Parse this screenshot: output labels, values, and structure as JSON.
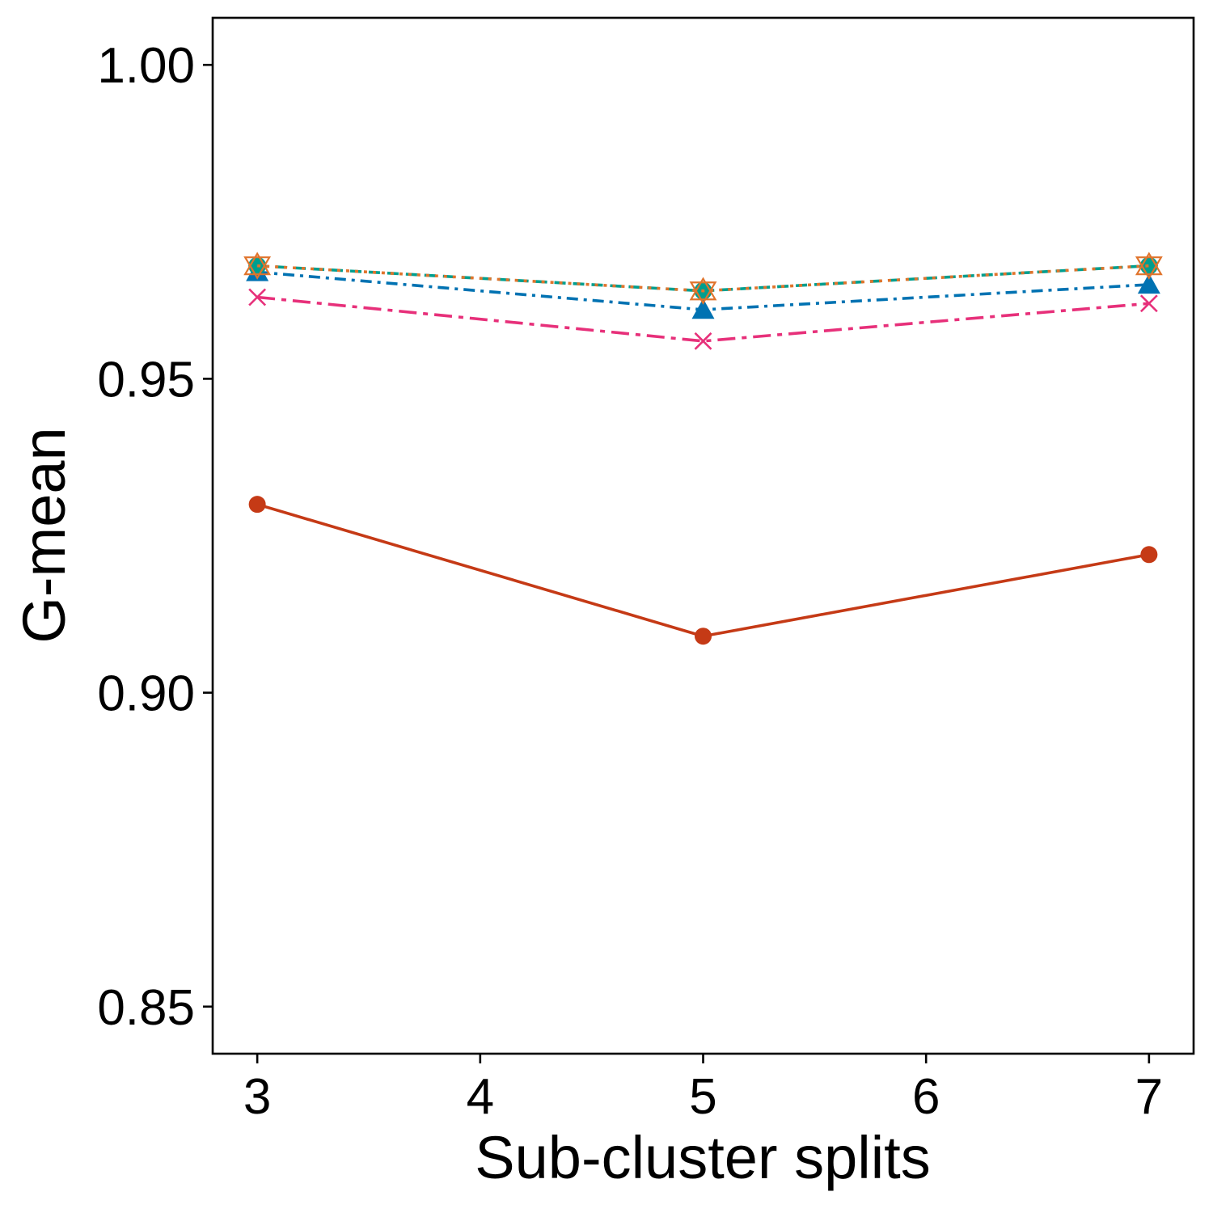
{
  "chart_data": {
    "type": "line",
    "title": "",
    "xlabel": "Sub-cluster splits",
    "ylabel": "G-mean",
    "x": [
      3,
      5,
      7
    ],
    "xticks": [
      3,
      4,
      5,
      6,
      7
    ],
    "xtick_labels": [
      "3",
      "4",
      "5",
      "6",
      "7"
    ],
    "xlim": [
      2.8,
      7.2
    ],
    "yticks": [
      0.85,
      0.9,
      0.95,
      1.0
    ],
    "ytick_labels": [
      "0.85",
      "0.90",
      "0.95",
      "1.00"
    ],
    "ylim": [
      0.8425,
      1.0075
    ],
    "grid": false,
    "legend": "none",
    "series": [
      {
        "values": [
          0.93,
          0.909,
          0.922
        ],
        "color": "#C53A16",
        "dash": "solid",
        "marker": "circle"
      },
      {
        "values": [
          0.963,
          0.956,
          0.962
        ],
        "color": "#E7307A",
        "dash": "dashdot-long",
        "marker": "x"
      },
      {
        "values": [
          0.967,
          0.961,
          0.965
        ],
        "color": "#0072B2",
        "dash": "dashdot",
        "marker": "triangle-filled"
      },
      {
        "values": [
          0.968,
          0.964,
          0.968
        ],
        "color": "#009E8E",
        "dash": "dashed",
        "marker": "circle-filled-teal"
      },
      {
        "values": [
          0.968,
          0.964,
          0.968
        ],
        "color": "#E0742C",
        "dash": "dotted",
        "marker": "star-of-david"
      }
    ]
  }
}
